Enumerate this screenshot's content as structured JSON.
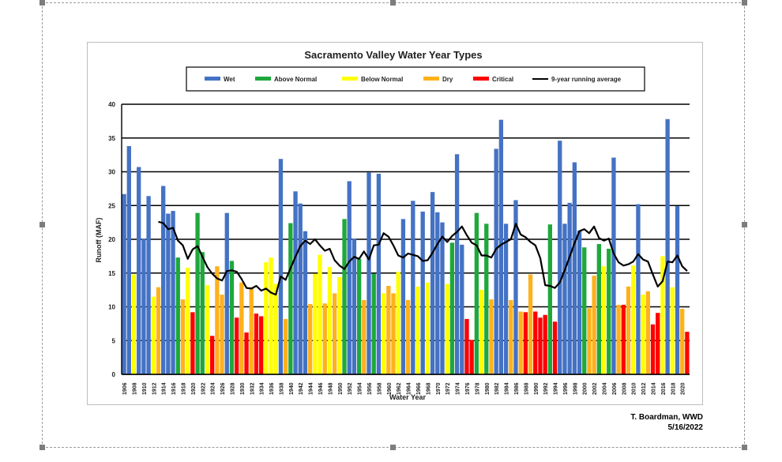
{
  "credit": {
    "author": "T. Boardman, WWD",
    "date": "5/16/2022"
  },
  "chart_data": {
    "type": "bar",
    "title": "Sacramento Valley Water Year Types",
    "xlabel": "Water Year",
    "ylabel": "Runoff (MAF)",
    "ylim": [
      0,
      40
    ],
    "yticks": [
      0,
      5,
      10,
      15,
      20,
      25,
      30,
      35,
      40
    ],
    "grid": true,
    "legend_position": "top",
    "legend": [
      {
        "key": "W",
        "label": "Wet",
        "color": "#4472C4",
        "kind": "bar"
      },
      {
        "key": "AN",
        "label": "Above Normal",
        "color": "#1EA83C",
        "kind": "bar"
      },
      {
        "key": "BN",
        "label": "Below Normal",
        "color": "#FFFF00",
        "kind": "bar"
      },
      {
        "key": "D",
        "label": "Dry",
        "color": "#FFB11B",
        "kind": "bar"
      },
      {
        "key": "C",
        "label": "Critical",
        "color": "#FF0000",
        "kind": "bar"
      },
      {
        "key": "RA",
        "label": "9-year running average",
        "color": "#000000",
        "kind": "line"
      }
    ],
    "x_tick_labels": [
      "1906",
      "1908",
      "1910",
      "1912",
      "1914",
      "1916",
      "1918",
      "1920",
      "1922",
      "1924",
      "1926",
      "1928",
      "1930",
      "1932",
      "1934",
      "1936",
      "1938",
      "1940",
      "1942",
      "1944",
      "1946",
      "1948",
      "1950",
      "1952",
      "1954",
      "1956",
      "1958",
      "1960",
      "1962",
      "1964",
      "1966",
      "1968",
      "1970",
      "1972",
      "1974",
      "1976",
      "1978",
      "1980",
      "1982",
      "1984",
      "1986",
      "1988",
      "1990",
      "1992",
      "1994",
      "1996",
      "1998",
      "2000",
      "2002",
      "2004",
      "2006",
      "2008",
      "2010",
      "2012",
      "2014",
      "2016",
      "2018",
      "2020"
    ],
    "series": [
      {
        "x": 1906,
        "value": 26.7,
        "type": "W"
      },
      {
        "x": 1907,
        "value": 33.8,
        "type": "W"
      },
      {
        "x": 1908,
        "value": 14.8,
        "type": "BN"
      },
      {
        "x": 1909,
        "value": 30.7,
        "type": "W"
      },
      {
        "x": 1910,
        "value": 20.1,
        "type": "W"
      },
      {
        "x": 1911,
        "value": 26.4,
        "type": "W"
      },
      {
        "x": 1912,
        "value": 11.5,
        "type": "BN"
      },
      {
        "x": 1913,
        "value": 12.9,
        "type": "D"
      },
      {
        "x": 1914,
        "value": 27.9,
        "type": "W"
      },
      {
        "x": 1915,
        "value": 23.8,
        "type": "W"
      },
      {
        "x": 1916,
        "value": 24.2,
        "type": "W"
      },
      {
        "x": 1917,
        "value": 17.3,
        "type": "AN"
      },
      {
        "x": 1918,
        "value": 11.1,
        "type": "D"
      },
      {
        "x": 1919,
        "value": 15.8,
        "type": "BN"
      },
      {
        "x": 1920,
        "value": 9.2,
        "type": "C"
      },
      {
        "x": 1921,
        "value": 23.9,
        "type": "AN"
      },
      {
        "x": 1922,
        "value": 18.1,
        "type": "AN"
      },
      {
        "x": 1923,
        "value": 13.2,
        "type": "BN"
      },
      {
        "x": 1924,
        "value": 5.7,
        "type": "C"
      },
      {
        "x": 1925,
        "value": 16.0,
        "type": "D"
      },
      {
        "x": 1926,
        "value": 11.8,
        "type": "D"
      },
      {
        "x": 1927,
        "value": 23.9,
        "type": "W"
      },
      {
        "x": 1928,
        "value": 16.8,
        "type": "AN"
      },
      {
        "x": 1929,
        "value": 8.4,
        "type": "C"
      },
      {
        "x": 1930,
        "value": 13.6,
        "type": "D"
      },
      {
        "x": 1931,
        "value": 6.2,
        "type": "C"
      },
      {
        "x": 1932,
        "value": 12.9,
        "type": "D"
      },
      {
        "x": 1933,
        "value": 9.0,
        "type": "C"
      },
      {
        "x": 1934,
        "value": 8.6,
        "type": "C"
      },
      {
        "x": 1935,
        "value": 16.6,
        "type": "BN"
      },
      {
        "x": 1936,
        "value": 17.3,
        "type": "BN"
      },
      {
        "x": 1937,
        "value": 13.4,
        "type": "BN"
      },
      {
        "x": 1938,
        "value": 31.9,
        "type": "W"
      },
      {
        "x": 1939,
        "value": 8.2,
        "type": "D"
      },
      {
        "x": 1940,
        "value": 22.4,
        "type": "AN"
      },
      {
        "x": 1941,
        "value": 27.1,
        "type": "W"
      },
      {
        "x": 1942,
        "value": 25.3,
        "type": "W"
      },
      {
        "x": 1943,
        "value": 21.2,
        "type": "W"
      },
      {
        "x": 1944,
        "value": 10.4,
        "type": "D"
      },
      {
        "x": 1945,
        "value": 14.9,
        "type": "BN"
      },
      {
        "x": 1946,
        "value": 17.7,
        "type": "BN"
      },
      {
        "x": 1947,
        "value": 10.5,
        "type": "D"
      },
      {
        "x": 1948,
        "value": 15.9,
        "type": "BN"
      },
      {
        "x": 1949,
        "value": 12.0,
        "type": "D"
      },
      {
        "x": 1950,
        "value": 14.4,
        "type": "BN"
      },
      {
        "x": 1951,
        "value": 23.0,
        "type": "AN"
      },
      {
        "x": 1952,
        "value": 28.6,
        "type": "W"
      },
      {
        "x": 1953,
        "value": 20.1,
        "type": "W"
      },
      {
        "x": 1954,
        "value": 17.1,
        "type": "AN"
      },
      {
        "x": 1955,
        "value": 11.0,
        "type": "D"
      },
      {
        "x": 1956,
        "value": 29.9,
        "type": "W"
      },
      {
        "x": 1957,
        "value": 14.9,
        "type": "AN"
      },
      {
        "x": 1958,
        "value": 29.7,
        "type": "W"
      },
      {
        "x": 1959,
        "value": 12.0,
        "type": "BN"
      },
      {
        "x": 1960,
        "value": 13.1,
        "type": "D"
      },
      {
        "x": 1961,
        "value": 12.0,
        "type": "D"
      },
      {
        "x": 1962,
        "value": 15.2,
        "type": "BN"
      },
      {
        "x": 1963,
        "value": 23.0,
        "type": "W"
      },
      {
        "x": 1964,
        "value": 11.0,
        "type": "D"
      },
      {
        "x": 1965,
        "value": 25.7,
        "type": "W"
      },
      {
        "x": 1966,
        "value": 13.0,
        "type": "BN"
      },
      {
        "x": 1967,
        "value": 24.1,
        "type": "W"
      },
      {
        "x": 1968,
        "value": 13.6,
        "type": "BN"
      },
      {
        "x": 1969,
        "value": 27.0,
        "type": "W"
      },
      {
        "x": 1970,
        "value": 24.0,
        "type": "W"
      },
      {
        "x": 1971,
        "value": 22.5,
        "type": "W"
      },
      {
        "x": 1972,
        "value": 13.4,
        "type": "BN"
      },
      {
        "x": 1973,
        "value": 19.5,
        "type": "AN"
      },
      {
        "x": 1974,
        "value": 32.6,
        "type": "W"
      },
      {
        "x": 1975,
        "value": 19.2,
        "type": "W"
      },
      {
        "x": 1976,
        "value": 8.2,
        "type": "C"
      },
      {
        "x": 1977,
        "value": 5.1,
        "type": "C"
      },
      {
        "x": 1978,
        "value": 23.9,
        "type": "AN"
      },
      {
        "x": 1979,
        "value": 12.5,
        "type": "BN"
      },
      {
        "x": 1980,
        "value": 22.3,
        "type": "AN"
      },
      {
        "x": 1981,
        "value": 11.1,
        "type": "D"
      },
      {
        "x": 1982,
        "value": 33.4,
        "type": "W"
      },
      {
        "x": 1983,
        "value": 37.7,
        "type": "W"
      },
      {
        "x": 1984,
        "value": 22.3,
        "type": "W"
      },
      {
        "x": 1985,
        "value": 11.0,
        "type": "D"
      },
      {
        "x": 1986,
        "value": 25.8,
        "type": "W"
      },
      {
        "x": 1987,
        "value": 9.3,
        "type": "D"
      },
      {
        "x": 1988,
        "value": 9.2,
        "type": "C"
      },
      {
        "x": 1989,
        "value": 14.8,
        "type": "D"
      },
      {
        "x": 1990,
        "value": 9.3,
        "type": "C"
      },
      {
        "x": 1991,
        "value": 8.4,
        "type": "C"
      },
      {
        "x": 1992,
        "value": 8.8,
        "type": "C"
      },
      {
        "x": 1993,
        "value": 22.2,
        "type": "AN"
      },
      {
        "x": 1994,
        "value": 7.8,
        "type": "C"
      },
      {
        "x": 1995,
        "value": 34.6,
        "type": "W"
      },
      {
        "x": 1996,
        "value": 22.3,
        "type": "W"
      },
      {
        "x": 1997,
        "value": 25.4,
        "type": "W"
      },
      {
        "x": 1998,
        "value": 31.4,
        "type": "W"
      },
      {
        "x": 1999,
        "value": 21.3,
        "type": "W"
      },
      {
        "x": 2000,
        "value": 18.8,
        "type": "AN"
      },
      {
        "x": 2001,
        "value": 9.8,
        "type": "D"
      },
      {
        "x": 2002,
        "value": 14.6,
        "type": "D"
      },
      {
        "x": 2003,
        "value": 19.3,
        "type": "AN"
      },
      {
        "x": 2004,
        "value": 16.0,
        "type": "BN"
      },
      {
        "x": 2005,
        "value": 18.6,
        "type": "AN"
      },
      {
        "x": 2006,
        "value": 32.1,
        "type": "W"
      },
      {
        "x": 2007,
        "value": 10.3,
        "type": "D"
      },
      {
        "x": 2008,
        "value": 10.3,
        "type": "C"
      },
      {
        "x": 2009,
        "value": 13.0,
        "type": "D"
      },
      {
        "x": 2010,
        "value": 16.1,
        "type": "BN"
      },
      {
        "x": 2011,
        "value": 25.2,
        "type": "W"
      },
      {
        "x": 2012,
        "value": 11.8,
        "type": "BN"
      },
      {
        "x": 2013,
        "value": 12.3,
        "type": "D"
      },
      {
        "x": 2014,
        "value": 7.4,
        "type": "C"
      },
      {
        "x": 2015,
        "value": 9.1,
        "type": "C"
      },
      {
        "x": 2016,
        "value": 17.5,
        "type": "BN"
      },
      {
        "x": 2017,
        "value": 37.8,
        "type": "W"
      },
      {
        "x": 2018,
        "value": 12.9,
        "type": "BN"
      },
      {
        "x": 2019,
        "value": 24.9,
        "type": "W"
      },
      {
        "x": 2020,
        "value": 9.7,
        "type": "D"
      },
      {
        "x": 2021,
        "value": 6.3,
        "type": "C"
      }
    ],
    "running_average": {
      "name": "9-year running average",
      "x": [
        1913,
        1914,
        1915,
        1916,
        1917,
        1918,
        1919,
        1920,
        1921,
        1922,
        1923,
        1924,
        1925,
        1926,
        1927,
        1928,
        1929,
        1930,
        1931,
        1932,
        1933,
        1934,
        1935,
        1936,
        1937,
        1938,
        1939,
        1940,
        1941,
        1942,
        1943,
        1944,
        1945,
        1946,
        1947,
        1948,
        1949,
        1950,
        1951,
        1952,
        1953,
        1954,
        1955,
        1956,
        1957,
        1958,
        1959,
        1960,
        1961,
        1962,
        1963,
        1964,
        1965,
        1966,
        1967,
        1968,
        1969,
        1970,
        1971,
        1972,
        1973,
        1974,
        1975,
        1976,
        1977,
        1978,
        1979,
        1980,
        1981,
        1982,
        1983,
        1984,
        1985,
        1986,
        1987,
        1988,
        1989,
        1990,
        1991,
        1992,
        1993,
        1994,
        1995,
        1996,
        1997,
        1998,
        1999,
        2000,
        2001,
        2002,
        2003,
        2004,
        2005,
        2006,
        2007,
        2008,
        2009,
        2010,
        2011,
        2012,
        2013,
        2014,
        2015,
        2016,
        2017,
        2018,
        2019,
        2020,
        2021
      ],
      "y": [
        22.6,
        22.4,
        21.5,
        21.7,
        19.8,
        19.1,
        17.1,
        18.5,
        19.0,
        17.4,
        15.9,
        14.9,
        14.2,
        13.9,
        15.3,
        15.4,
        15.2,
        14.1,
        12.8,
        12.7,
        13.1,
        12.4,
        12.7,
        12.1,
        11.8,
        14.5,
        14.0,
        15.7,
        17.4,
        19.0,
        19.8,
        19.3,
        20.0,
        19.1,
        18.3,
        18.6,
        16.9,
        16.1,
        15.6,
        16.7,
        17.4,
        17.1,
        18.2,
        17.0,
        19.1,
        19.2,
        20.9,
        20.4,
        19.1,
        17.6,
        17.3,
        17.9,
        17.7,
        17.5,
        16.8,
        16.9,
        18.0,
        19.3,
        20.4,
        19.6,
        20.5,
        21.1,
        21.9,
        20.6,
        19.5,
        19.1,
        17.6,
        17.6,
        17.3,
        18.6,
        19.2,
        19.6,
        20.0,
        22.3,
        20.7,
        20.3,
        19.6,
        19.1,
        17.2,
        13.2,
        13.1,
        12.8,
        13.6,
        15.4,
        17.4,
        19.4,
        21.2,
        21.5,
        20.9,
        21.9,
        20.2,
        19.8,
        20.1,
        17.9,
        16.6,
        16.1,
        16.3,
        16.7,
        17.8,
        17.0,
        16.7,
        14.8,
        13.0,
        13.8,
        16.7,
        16.6,
        17.6,
        16.0,
        15.3
      ]
    }
  }
}
